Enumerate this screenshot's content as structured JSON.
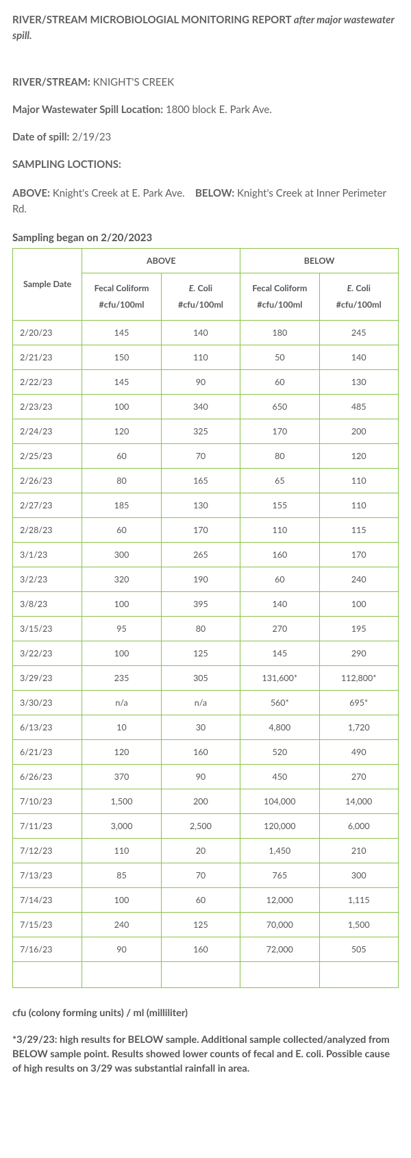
{
  "report": {
    "title_prefix": "RIVER/STREAM MICROBIOLOGIAL MONITORING REPORT ",
    "title_suffix": "after major wastewater spill."
  },
  "fields": {
    "river_label": "RIVER/STREAM:",
    "river_value": "KNIGHT'S CREEK",
    "spill_loc_label": "Major Wastewater Spill Location:",
    "spill_loc_value": "1800 block E. Park Ave.",
    "spill_date_label": "Date of spill:",
    "spill_date_value": "2/19/23",
    "sampling_locs_heading": "SAMPLING LOCTIONS:",
    "above_label": "ABOVE:",
    "above_value": "Knight's Creek at E. Park Ave.",
    "below_label": "BELOW:",
    "below_value": "Knight's Creek at Inner Perimeter Rd.",
    "sampling_began": "Sampling began on 2/20/2023"
  },
  "table": {
    "border_color": "#8bc34a",
    "head_above": "ABOVE",
    "head_below": "BELOW",
    "head_sample_date": "Sample Date",
    "sub_fecal_text": "Fecal Coliform",
    "sub_fecal_unit": "#cfu/100ml",
    "sub_ecoli_text_italic": "E.",
    "sub_ecoli_text_rest": " Coli",
    "sub_ecoli_unit": "#cfu/100ml",
    "rows": [
      {
        "date": "2/20/23",
        "a_fecal": "145",
        "a_ecoli": "140",
        "b_fecal": "180",
        "b_ecoli": "245"
      },
      {
        "date": "2/21/23",
        "a_fecal": "150",
        "a_ecoli": "110",
        "b_fecal": "50",
        "b_ecoli": "140"
      },
      {
        "date": "2/22/23",
        "a_fecal": "145",
        "a_ecoli": "90",
        "b_fecal": "60",
        "b_ecoli": "130"
      },
      {
        "date": "2/23/23",
        "a_fecal": "100",
        "a_ecoli": "340",
        "b_fecal": "650",
        "b_ecoli": "485"
      },
      {
        "date": "2/24/23",
        "a_fecal": "120",
        "a_ecoli": "325",
        "b_fecal": "170",
        "b_ecoli": "200"
      },
      {
        "date": "2/25/23",
        "a_fecal": "60",
        "a_ecoli": "70",
        "b_fecal": "80",
        "b_ecoli": "120"
      },
      {
        "date": "2/26/23",
        "a_fecal": "80",
        "a_ecoli": "165",
        "b_fecal": "65",
        "b_ecoli": "110"
      },
      {
        "date": "2/27/23",
        "a_fecal": "185",
        "a_ecoli": "130",
        "b_fecal": "155",
        "b_ecoli": "110"
      },
      {
        "date": "2/28/23",
        "a_fecal": "60",
        "a_ecoli": "170",
        "b_fecal": "110",
        "b_ecoli": "115"
      },
      {
        "date": "3/1/23",
        "a_fecal": "300",
        "a_ecoli": "265",
        "b_fecal": "160",
        "b_ecoli": "170"
      },
      {
        "date": "3/2/23",
        "a_fecal": "320",
        "a_ecoli": "190",
        "b_fecal": "60",
        "b_ecoli": "240"
      },
      {
        "date": "3/8/23",
        "a_fecal": "100",
        "a_ecoli": "395",
        "b_fecal": "140",
        "b_ecoli": "100"
      },
      {
        "date": "3/15/23",
        "a_fecal": "95",
        "a_ecoli": "80",
        "b_fecal": "270",
        "b_ecoli": "195"
      },
      {
        "date": "3/22/23",
        "a_fecal": "100",
        "a_ecoli": "125",
        "b_fecal": "145",
        "b_ecoli": "290"
      },
      {
        "date": "3/29/23",
        "a_fecal": "235",
        "a_ecoli": "305",
        "b_fecal": "131,600*",
        "b_ecoli": "112,800*"
      },
      {
        "date": "3/30/23",
        "a_fecal": "n/a",
        "a_ecoli": "n/a",
        "b_fecal": "560*",
        "b_ecoli": "695*"
      },
      {
        "date": "6/13/23",
        "a_fecal": "10",
        "a_ecoli": "30",
        "b_fecal": "4,800",
        "b_ecoli": "1,720"
      },
      {
        "date": "6/21/23",
        "a_fecal": "120",
        "a_ecoli": "160",
        "b_fecal": "520",
        "b_ecoli": "490"
      },
      {
        "date": "6/26/23",
        "a_fecal": "370",
        "a_ecoli": "90",
        "b_fecal": "450",
        "b_ecoli": "270"
      },
      {
        "date": "7/10/23",
        "a_fecal": "1,500",
        "a_ecoli": "200",
        "b_fecal": "104,000",
        "b_ecoli": "14,000"
      },
      {
        "date": "7/11/23",
        "a_fecal": "3,000",
        "a_ecoli": "2,500",
        "b_fecal": "120,000",
        "b_ecoli": "6,000"
      },
      {
        "date": "7/12/23",
        "a_fecal": "110",
        "a_ecoli": "20",
        "b_fecal": "1,450",
        "b_ecoli": "210"
      },
      {
        "date": "7/13/23",
        "a_fecal": "85",
        "a_ecoli": "70",
        "b_fecal": "765",
        "b_ecoli": "300"
      },
      {
        "date": "7/14/23",
        "a_fecal": "100",
        "a_ecoli": "60",
        "b_fecal": "12,000",
        "b_ecoli": "1,115"
      },
      {
        "date": "7/15/23",
        "a_fecal": "240",
        "a_ecoli": "125",
        "b_fecal": "70,000",
        "b_ecoli": "1,500"
      },
      {
        "date": "7/16/23",
        "a_fecal": "90",
        "a_ecoli": "160",
        "b_fecal": "72,000",
        "b_ecoli": "505"
      }
    ]
  },
  "footnotes": {
    "unit_def": "cfu (colony forming units) / ml (milliliter)",
    "note": "*3/29/23: high results for BELOW sample. Additional sample collected/analyzed from BELOW sample point. Results showed lower counts of fecal and E. coli. Possible cause of high results on 3/29 was substantial rainfall in area."
  }
}
